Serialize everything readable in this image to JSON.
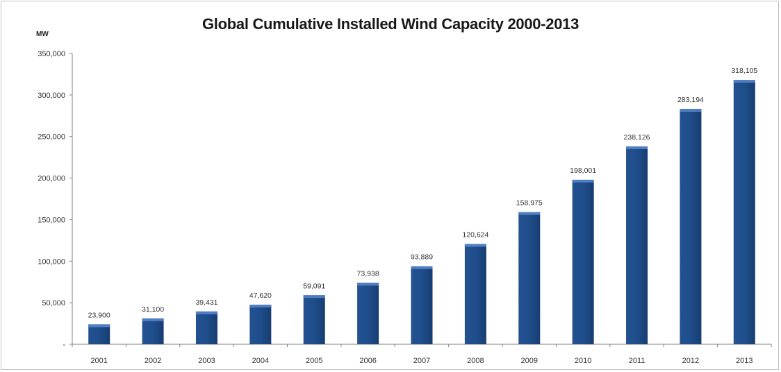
{
  "chart_data": {
    "type": "bar",
    "title": "Global Cumulative Installed Wind Capacity 2000-2013",
    "ylabel": "MW",
    "xlabel": "",
    "categories": [
      "2001",
      "2002",
      "2003",
      "2004",
      "2005",
      "2006",
      "2007",
      "2008",
      "2009",
      "2010",
      "2011",
      "2012",
      "2013"
    ],
    "values": [
      23900,
      31100,
      39431,
      47620,
      59091,
      73938,
      93889,
      120624,
      158975,
      198001,
      238126,
      283194,
      318105
    ],
    "data_labels": [
      "23,900",
      "31,100",
      "39,431",
      "47,620",
      "59,091",
      "73,938",
      "93,889",
      "120,624",
      "158,975",
      "198,001",
      "238,126",
      "283,194",
      "318,105"
    ],
    "ylim": [
      0,
      350000
    ],
    "yticks": [
      0,
      50000,
      100000,
      150000,
      200000,
      250000,
      300000,
      350000
    ],
    "ytick_labels": [
      "-",
      "50,000",
      "100,000",
      "150,000",
      "200,000",
      "250,000",
      "300,000",
      "350,000"
    ],
    "grid": false,
    "legend": "none",
    "colors": {
      "bar": "#1f4e8c",
      "bar_top": "#4f7fc2"
    }
  }
}
